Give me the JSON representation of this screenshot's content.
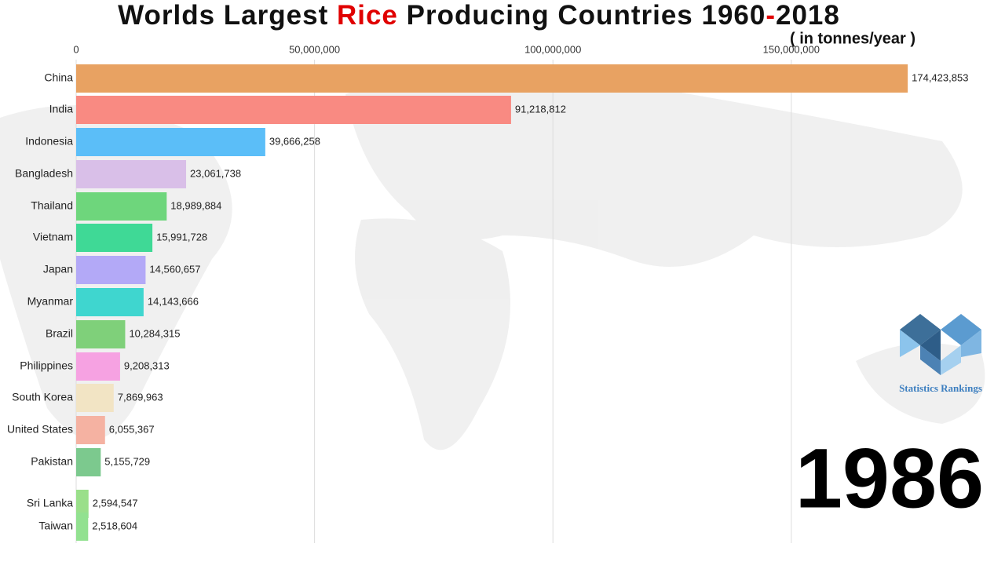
{
  "chart_data": {
    "type": "bar",
    "orientation": "horizontal",
    "title": [
      "Worlds Largest ",
      "Rice",
      " Producing Countries 1960",
      "-",
      "2018"
    ],
    "subtitle": "( in tonnes/year )",
    "year": "1986",
    "brand": "Statistics Rankings",
    "categories": [
      "China",
      "India",
      "Indonesia",
      "Bangladesh",
      "Thailand",
      "Vietnam",
      "Japan",
      "Myanmar",
      "Brazil",
      "Philippines",
      "South Korea",
      "United States",
      "Pakistan",
      "Sri Lanka",
      "Taiwan"
    ],
    "values": [
      174423853,
      91218812,
      39666258,
      23061738,
      18989884,
      15991728,
      14560657,
      14143666,
      10284315,
      9208313,
      7869963,
      6055367,
      5155729,
      2594547,
      2518604
    ],
    "value_labels": [
      "174,423,853",
      "91,218,812",
      "39,666,258",
      "23,061,738",
      "18,989,884",
      "15,991,728",
      "14,560,657",
      "14,143,666",
      "10,284,315",
      "9,208,313",
      "7,869,963",
      "6,055,367",
      "5,155,729",
      "2,594,547",
      "2,518,604"
    ],
    "colors": [
      "#e8a262",
      "#f98a82",
      "#5bbef8",
      "#d9bfe8",
      "#6ed67c",
      "#3fd996",
      "#b3a9f7",
      "#3fd6cf",
      "#7fd07a",
      "#f6a2e2",
      "#f2e4c4",
      "#f5b2a2",
      "#7cc98e",
      "#9adf8a",
      "#92e190"
    ],
    "xlim": [
      0,
      180000000
    ],
    "xticks": [
      0,
      {
        "value": 50000000,
        "label": "50,000,000"
      },
      {
        "value": 100000000,
        "label": "100,000,000"
      },
      {
        "value": 150000000,
        "label": "150,000,000"
      }
    ],
    "grid": true
  }
}
